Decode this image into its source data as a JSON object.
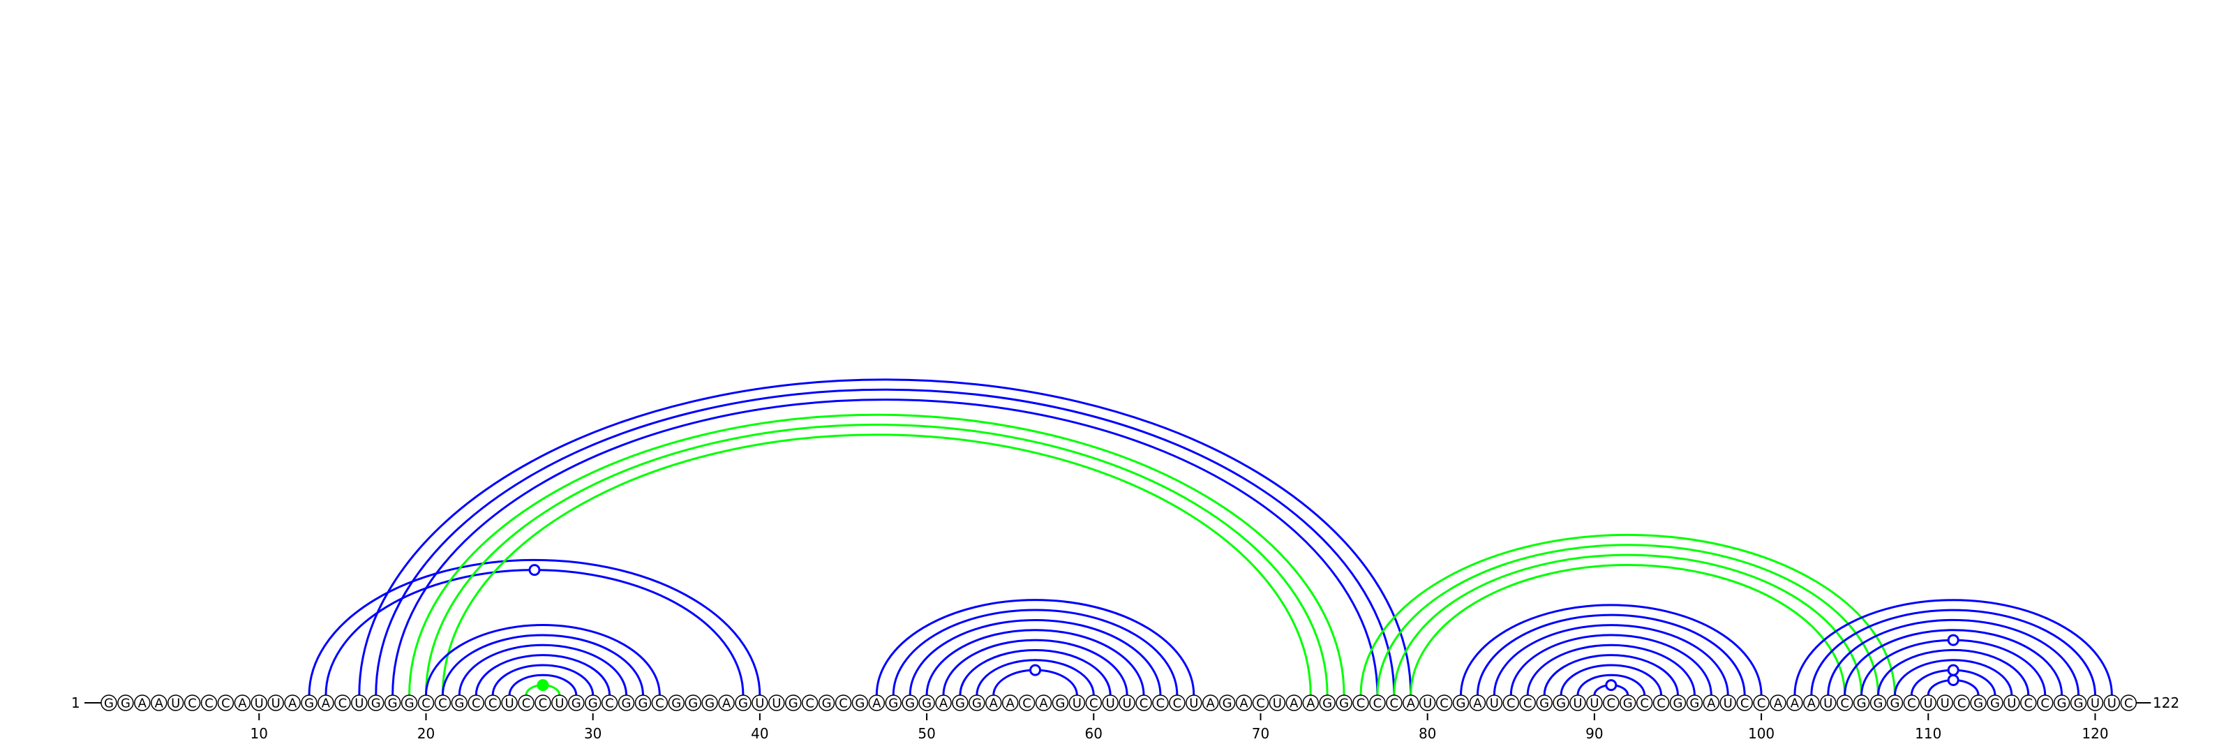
{
  "sequence": "GGAAUCCCAUUAGACUGGGCCGCCUCCUGGCGGCGGGAGUUGCGCGAGGGAGGAACAGUCUUCCCUAGACUAAGGCCCAUCGAUCCGGUUCGCCGGAUCCAAAUCGGGCUUCGGUCCGGUUC",
  "start_label": "1",
  "end_label": "122",
  "tick_labels": [
    "10",
    "20",
    "30",
    "40",
    "50",
    "60",
    "70",
    "80",
    "90",
    "100",
    "110",
    "120"
  ],
  "colors": {
    "blue": "#0000ff",
    "green": "#00ff00"
  },
  "helices": [
    {
      "color": "blue",
      "pairs": [
        [
          13,
          40
        ],
        [
          14,
          39
        ]
      ],
      "marker": "open"
    },
    {
      "color": "blue",
      "pairs": [
        [
          16,
          79
        ],
        [
          17,
          78
        ],
        [
          18,
          77
        ]
      ]
    },
    {
      "color": "green",
      "pairs": [
        [
          19,
          75
        ],
        [
          20,
          74
        ],
        [
          21,
          73
        ]
      ]
    },
    {
      "color": "blue",
      "pairs": [
        [
          20,
          34
        ],
        [
          21,
          33
        ],
        [
          22,
          32
        ],
        [
          23,
          31
        ],
        [
          24,
          30
        ],
        [
          25,
          29
        ]
      ]
    },
    {
      "color": "green",
      "pairs": [
        [
          26,
          28
        ]
      ],
      "marker": "filled"
    },
    {
      "color": "blue",
      "pairs": [
        [
          47,
          66
        ],
        [
          48,
          65
        ],
        [
          49,
          64
        ],
        [
          50,
          63
        ],
        [
          51,
          62
        ],
        [
          52,
          61
        ],
        [
          53,
          60
        ],
        [
          54,
          59
        ]
      ],
      "marker": "open"
    },
    {
      "color": "green",
      "pairs": [
        [
          76,
          108
        ],
        [
          77,
          107
        ],
        [
          78,
          106
        ],
        [
          79,
          105
        ]
      ]
    },
    {
      "color": "blue",
      "pairs": [
        [
          82,
          100
        ],
        [
          83,
          99
        ],
        [
          84,
          98
        ],
        [
          85,
          97
        ],
        [
          86,
          96
        ],
        [
          87,
          95
        ],
        [
          88,
          94
        ],
        [
          89,
          93
        ],
        [
          90,
          92
        ]
      ],
      "marker": "open"
    },
    {
      "color": "blue",
      "pairs": [
        [
          102,
          121
        ],
        [
          103,
          120
        ],
        [
          104,
          119
        ],
        [
          105,
          118
        ],
        [
          106,
          117
        ],
        [
          107,
          116
        ],
        [
          108,
          115
        ],
        [
          109,
          114
        ],
        [
          110,
          113
        ]
      ],
      "markers_at": [
        [
          106,
          117
        ],
        [
          109,
          114
        ],
        [
          110,
          113
        ]
      ]
    }
  ]
}
